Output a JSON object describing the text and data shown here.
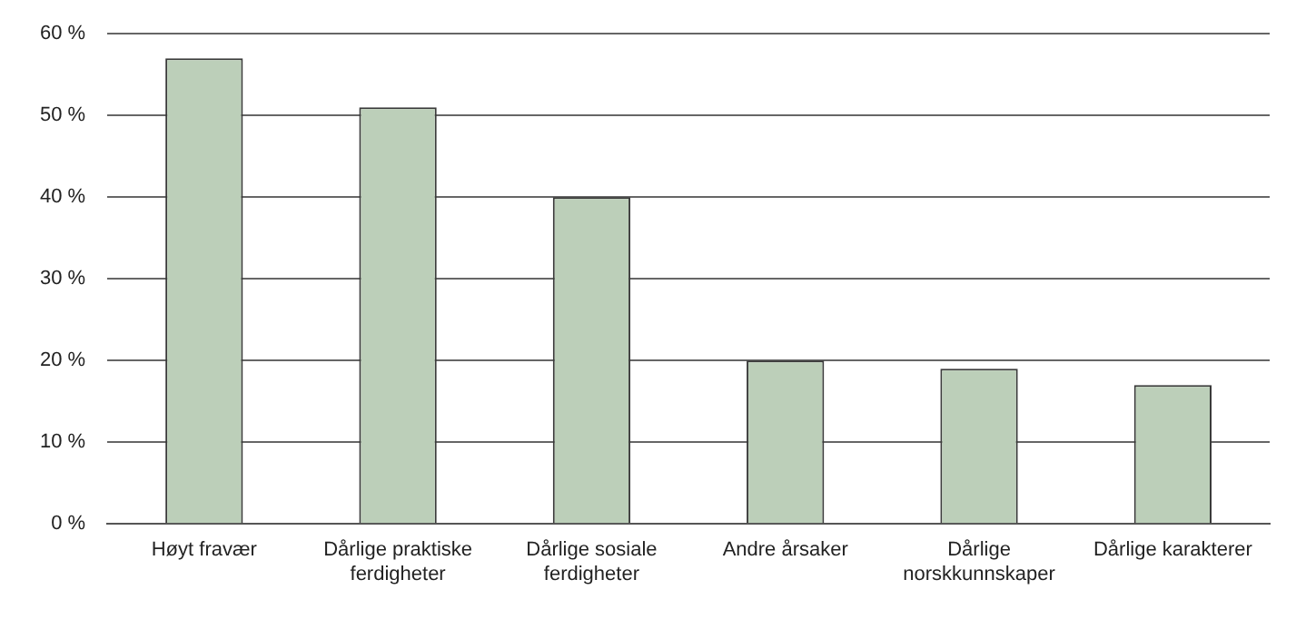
{
  "chart_data": {
    "type": "bar",
    "categories": [
      "Høyt fravær",
      "Dårlige praktiske ferdigheter",
      "Dårlige sosiale ferdigheter",
      "Andre årsaker",
      "Dårlige norskkunnskaper",
      "Dårlige karakterer"
    ],
    "values": [
      57,
      51,
      40,
      20,
      19,
      17
    ],
    "color": "#bccfb9",
    "ylim": [
      0,
      60
    ],
    "yticks": [
      {
        "value": 0,
        "label": "0 %"
      },
      {
        "value": 10,
        "label": "10 %"
      },
      {
        "value": 20,
        "label": "20 %"
      },
      {
        "value": 30,
        "label": "30 %"
      },
      {
        "value": 40,
        "label": "40 %"
      },
      {
        "value": 50,
        "label": "50 %"
      },
      {
        "value": 60,
        "label": "60 %"
      }
    ],
    "grid": "y"
  }
}
